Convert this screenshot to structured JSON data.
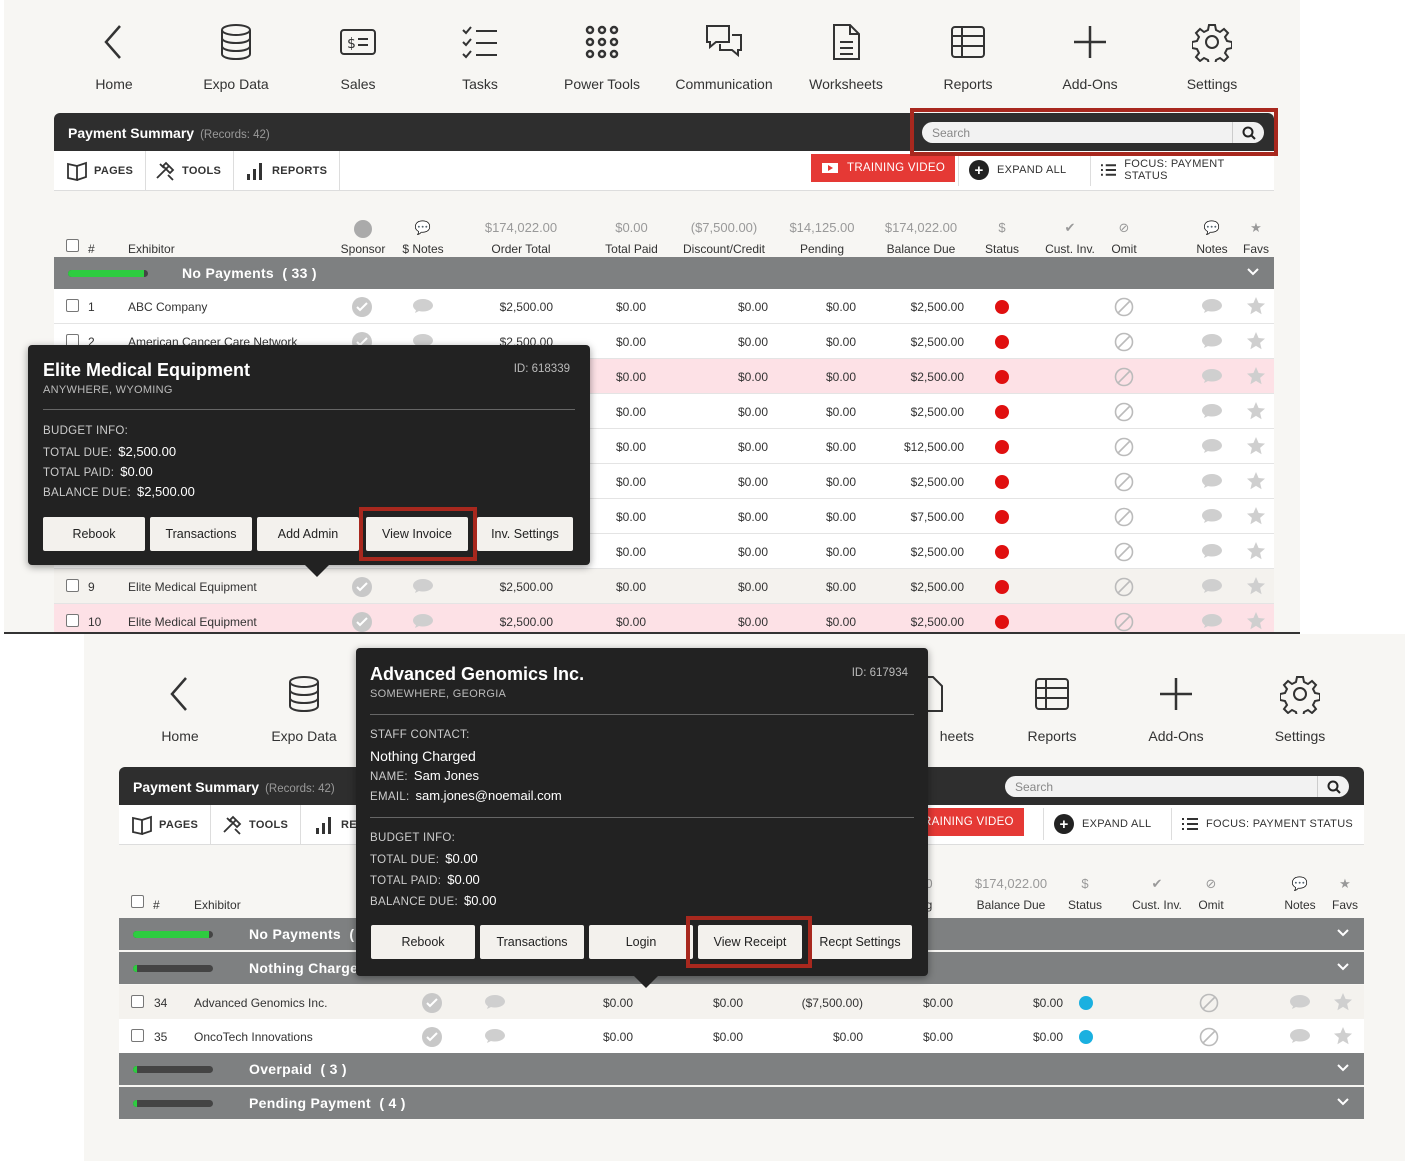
{
  "nav": [
    "Home",
    "Expo Data",
    "Sales",
    "Tasks",
    "Power Tools",
    "Communication",
    "Worksheets",
    "Reports",
    "Add-Ons",
    "Settings"
  ],
  "summary": {
    "title": "Payment Summary",
    "records": "(Records: 42)",
    "search_placeholder": "Search"
  },
  "toolbar": {
    "pages": "PAGES",
    "tools": "TOOLS",
    "reports": "REPORTS",
    "training": "TRAINING VIDEO",
    "expand": "EXPAND ALL",
    "focus": "FOCUS: PAYMENT STATUS"
  },
  "columns": {
    "select": "#",
    "exhibitor": "Exhibitor",
    "sponsor": "Sponsor",
    "notes_money": "$ Notes",
    "order_total": "Order Total",
    "total_paid": "Total Paid",
    "discount": "Discount/Credit",
    "pending": "Pending",
    "balance_due": "Balance Due",
    "status": "Status",
    "cust_inv": "Cust. Inv.",
    "omit": "Omit",
    "notes": "Notes",
    "favs": "Favs"
  },
  "column_totals": {
    "order_total": "$174,022.00",
    "total_paid": "$0.00",
    "discount": "($7,500.00)",
    "pending": "$14,125.00",
    "balance_due": "$174,022.00",
    "status": "$"
  },
  "colors": {
    "header": "#2e2e2e",
    "group": "#7e8081",
    "accent_red": "#e53935",
    "status_red": "#e01010",
    "status_blue": "#1ab0e0",
    "progress_green": "#2ecc40",
    "highlight": "#a8281e"
  },
  "groups1": [
    {
      "label": "No Payments",
      "count": "( 33 )",
      "progress": 0.95
    }
  ],
  "rows1": [
    {
      "n": "1",
      "name": "ABC Company",
      "order": "$2,500.00",
      "paid": "$0.00",
      "disc": "$0.00",
      "pend": "$0.00",
      "bal": "$2,500.00"
    },
    {
      "n": "2",
      "name": "American Cancer Care Network",
      "order": "$2,500.00",
      "paid": "$0.00",
      "disc": "$0.00",
      "pend": "$0.00",
      "bal": "$2,500.00"
    },
    {
      "n": "",
      "name": "",
      "order": "",
      "paid": "$0.00",
      "disc": "$0.00",
      "pend": "$0.00",
      "bal": "$2,500.00"
    },
    {
      "n": "",
      "name": "",
      "order": "",
      "paid": "$0.00",
      "disc": "$0.00",
      "pend": "$0.00",
      "bal": "$2,500.00"
    },
    {
      "n": "",
      "name": "",
      "order": "",
      "paid": "$0.00",
      "disc": "$0.00",
      "pend": "$0.00",
      "bal": "$12,500.00"
    },
    {
      "n": "",
      "name": "",
      "order": "",
      "paid": "$0.00",
      "disc": "$0.00",
      "pend": "$0.00",
      "bal": "$2,500.00"
    },
    {
      "n": "",
      "name": "",
      "order": "",
      "paid": "$0.00",
      "disc": "$0.00",
      "pend": "$0.00",
      "bal": "$7,500.00"
    },
    {
      "n": "",
      "name": "",
      "order": "",
      "paid": "$0.00",
      "disc": "$0.00",
      "pend": "$0.00",
      "bal": "$2,500.00"
    },
    {
      "n": "9",
      "name": "Elite Medical Equipment",
      "order": "$2,500.00",
      "paid": "$0.00",
      "disc": "$0.00",
      "pend": "$0.00",
      "bal": "$2,500.00"
    },
    {
      "n": "10",
      "name": "Elite Medical Equipment",
      "order": "$2,500.00",
      "paid": "$0.00",
      "disc": "$0.00",
      "pend": "$0.00",
      "bal": "$2,500.00"
    }
  ],
  "popup1": {
    "name": "Elite Medical Equipment",
    "location": "ANYWHERE, WYOMING",
    "id": "ID: 618339",
    "budget_label": "BUDGET INFO:",
    "total_due_label": "TOTAL DUE:",
    "total_due": "$2,500.00",
    "total_paid_label": "TOTAL PAID:",
    "total_paid": "$0.00",
    "balance_due_label": "BALANCE DUE:",
    "balance_due": "$2,500.00",
    "buttons": [
      "Rebook",
      "Transactions",
      "Add Admin",
      "View Invoice",
      "Inv. Settings"
    ]
  },
  "popup2": {
    "name": "Advanced Genomics Inc.",
    "location": "SOMEWHERE, GEORGIA",
    "id": "ID: 617934",
    "staff_label": "STAFF CONTACT:",
    "staff_value": "Nothing Charged",
    "name_label": "NAME:",
    "contact_name": "Sam Jones",
    "email_label": "EMAIL:",
    "email": "sam.jones@noemail.com",
    "budget_label": "BUDGET INFO:",
    "total_due_label": "TOTAL DUE:",
    "total_due": "$0.00",
    "total_paid_label": "TOTAL PAID:",
    "total_paid": "$0.00",
    "balance_due_label": "BALANCE DUE:",
    "balance_due": "$0.00",
    "buttons": [
      "Rebook",
      "Transactions",
      "Login",
      "View Receipt",
      "Recpt Settings"
    ]
  },
  "screen2": {
    "col_partial_top": "0",
    "col_partial_bot": "g",
    "reports_partial": "RE",
    "training_partial": "RAINING VIDEO",
    "worksheets_partial": "heets",
    "groups": [
      {
        "label": "No Payments",
        "count": "(",
        "progress": 0.95
      },
      {
        "label": "Nothing Charge",
        "count": "",
        "progress": 0.05
      },
      {
        "label": "Overpaid",
        "count": "( 3 )",
        "progress": 0.05
      },
      {
        "label": "Pending Payment",
        "count": "( 4 )",
        "progress": 0.05
      }
    ],
    "rows": [
      {
        "n": "34",
        "name": "Advanced Genomics Inc.",
        "order": "$0.00",
        "paid": "$0.00",
        "disc": "($7,500.00)",
        "pend": "$0.00",
        "bal": "$0.00"
      },
      {
        "n": "35",
        "name": "OncoTech Innovations",
        "order": "$0.00",
        "paid": "$0.00",
        "disc": "$0.00",
        "pend": "$0.00",
        "bal": "$0.00"
      }
    ]
  }
}
